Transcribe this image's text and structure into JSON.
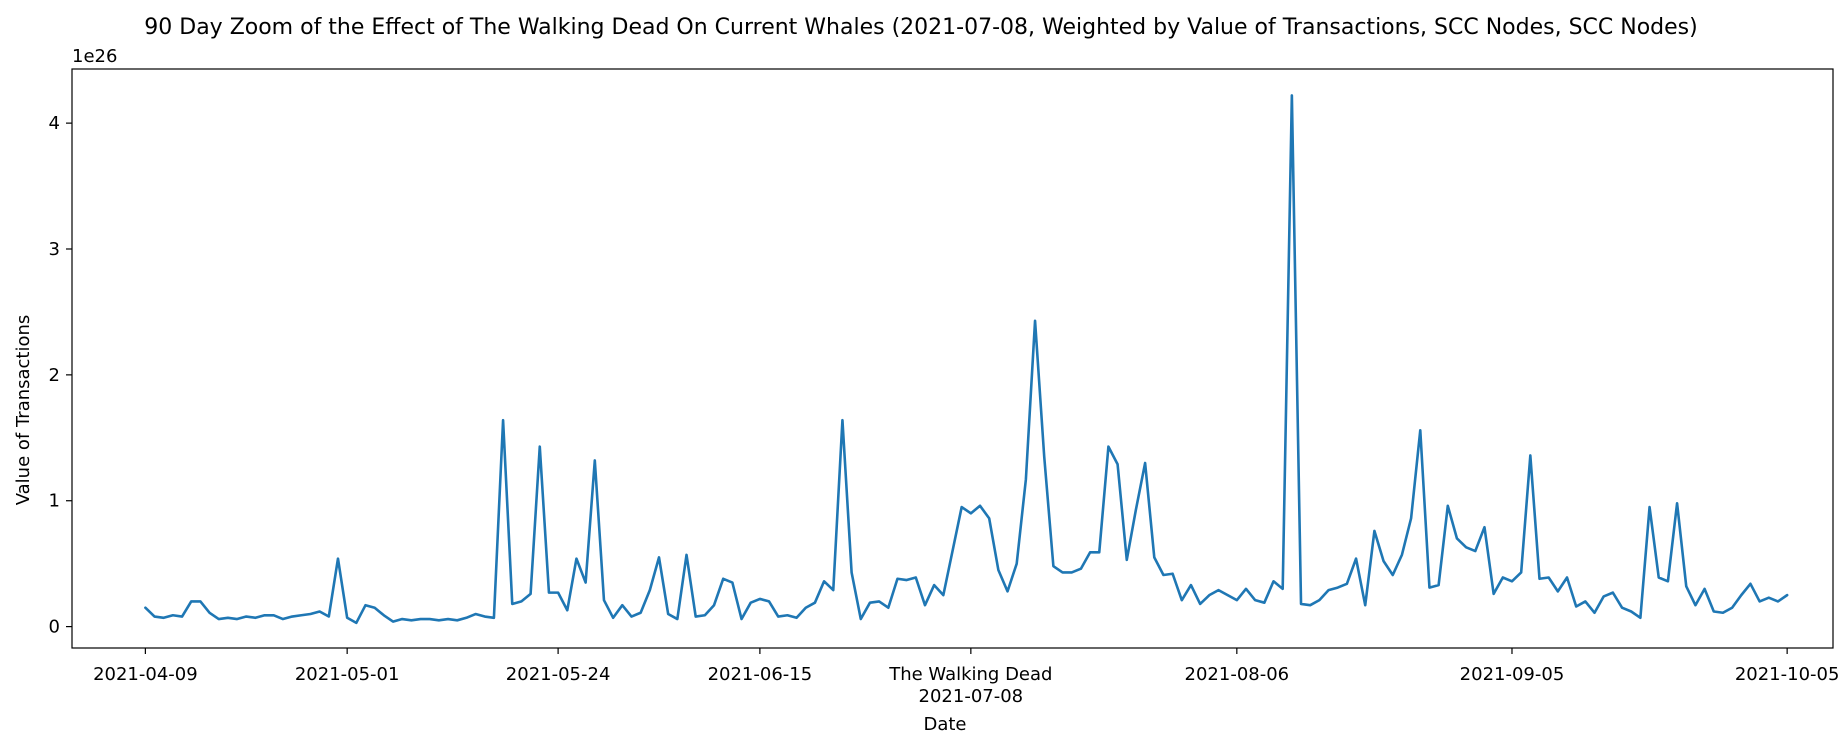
{
  "chart_data": {
    "type": "line",
    "title": "90 Day Zoom of the Effect of The Walking Dead On Current Whales (2021-07-08, Weighted by Value of Transactions, SCC Nodes, SCC Nodes)",
    "xlabel": "Date",
    "ylabel": "Value of Transactions",
    "y_scale_label": "1e26",
    "y_ticks": [
      0,
      1,
      2,
      3,
      4
    ],
    "ylim": [
      -0.17,
      4.43
    ],
    "xlim": [
      "2021-04-01",
      "2021-10-10"
    ],
    "x_ticks": [
      {
        "date": "2021-04-09",
        "label": "2021-04-09"
      },
      {
        "date": "2021-05-01",
        "label": "2021-05-01"
      },
      {
        "date": "2021-05-24",
        "label": "2021-05-24"
      },
      {
        "date": "2021-06-15",
        "label": "2021-06-15"
      },
      {
        "date": "2021-07-08",
        "label": "2021-07-08"
      },
      {
        "date": "2021-08-06",
        "label": "2021-08-06"
      },
      {
        "date": "2021-09-05",
        "label": "2021-09-05"
      },
      {
        "date": "2021-10-05",
        "label": "2021-10-05"
      }
    ],
    "event": {
      "date": "2021-07-08",
      "label": "The Walking Dead"
    },
    "line_color": "#1f77b4",
    "grid": false,
    "series": [
      {
        "x": [
          "2021-04-09",
          "2021-04-10",
          "2021-04-11",
          "2021-04-12",
          "2021-04-13",
          "2021-04-14",
          "2021-04-15",
          "2021-04-16",
          "2021-04-17",
          "2021-04-18",
          "2021-04-19",
          "2021-04-20",
          "2021-04-21",
          "2021-04-22",
          "2021-04-23",
          "2021-04-24",
          "2021-04-25",
          "2021-04-26",
          "2021-04-27",
          "2021-04-28",
          "2021-04-29",
          "2021-04-30",
          "2021-05-01",
          "2021-05-02",
          "2021-05-03",
          "2021-05-04",
          "2021-05-05",
          "2021-05-06",
          "2021-05-07",
          "2021-05-08",
          "2021-05-09",
          "2021-05-10",
          "2021-05-11",
          "2021-05-12",
          "2021-05-13",
          "2021-05-14",
          "2021-05-15",
          "2021-05-16",
          "2021-05-17",
          "2021-05-18",
          "2021-05-19",
          "2021-05-20",
          "2021-05-21",
          "2021-05-22",
          "2021-05-23",
          "2021-05-24",
          "2021-05-25",
          "2021-05-26",
          "2021-05-27",
          "2021-05-28",
          "2021-05-29",
          "2021-05-30",
          "2021-05-31",
          "2021-06-01",
          "2021-06-02",
          "2021-06-03",
          "2021-06-04",
          "2021-06-05",
          "2021-06-06",
          "2021-06-07",
          "2021-06-08",
          "2021-06-09",
          "2021-06-10",
          "2021-06-11",
          "2021-06-12",
          "2021-06-13",
          "2021-06-14",
          "2021-06-15",
          "2021-06-16",
          "2021-06-17",
          "2021-06-18",
          "2021-06-19",
          "2021-06-20",
          "2021-06-21",
          "2021-06-22",
          "2021-06-23",
          "2021-06-24",
          "2021-06-25",
          "2021-06-26",
          "2021-06-27",
          "2021-06-28",
          "2021-06-29",
          "2021-06-30",
          "2021-07-01",
          "2021-07-02",
          "2021-07-03",
          "2021-07-04",
          "2021-07-05",
          "2021-07-06",
          "2021-07-07",
          "2021-07-08",
          "2021-07-09",
          "2021-07-10",
          "2021-07-11",
          "2021-07-12",
          "2021-07-13",
          "2021-07-14",
          "2021-07-15",
          "2021-07-16",
          "2021-07-17",
          "2021-07-18",
          "2021-07-19",
          "2021-07-20",
          "2021-07-21",
          "2021-07-22",
          "2021-07-23",
          "2021-07-24",
          "2021-07-25",
          "2021-07-26",
          "2021-07-27",
          "2021-07-28",
          "2021-07-29",
          "2021-07-30",
          "2021-07-31",
          "2021-08-01",
          "2021-08-02",
          "2021-08-03",
          "2021-08-04",
          "2021-08-05",
          "2021-08-06",
          "2021-08-07",
          "2021-08-08",
          "2021-08-09",
          "2021-08-10",
          "2021-08-11",
          "2021-08-12",
          "2021-08-13",
          "2021-08-14",
          "2021-08-15",
          "2021-08-16",
          "2021-08-17",
          "2021-08-18",
          "2021-08-19",
          "2021-08-20",
          "2021-08-21",
          "2021-08-22",
          "2021-08-23",
          "2021-08-24",
          "2021-08-25",
          "2021-08-26",
          "2021-08-27",
          "2021-08-28",
          "2021-08-29",
          "2021-08-30",
          "2021-08-31",
          "2021-09-01",
          "2021-09-02",
          "2021-09-03",
          "2021-09-04",
          "2021-09-05",
          "2021-09-06",
          "2021-09-07",
          "2021-09-08",
          "2021-09-09",
          "2021-09-10",
          "2021-09-11",
          "2021-09-12",
          "2021-09-13",
          "2021-09-14",
          "2021-09-15",
          "2021-09-16",
          "2021-09-17",
          "2021-09-18",
          "2021-09-19",
          "2021-09-20",
          "2021-09-21",
          "2021-09-22",
          "2021-09-23",
          "2021-09-24",
          "2021-09-25",
          "2021-09-26",
          "2021-09-27",
          "2021-09-28",
          "2021-09-29",
          "2021-09-30",
          "2021-10-01",
          "2021-10-02",
          "2021-10-03",
          "2021-10-04",
          "2021-10-05"
        ],
        "y": [
          0.15,
          0.08,
          0.07,
          0.09,
          0.08,
          0.2,
          0.2,
          0.11,
          0.06,
          0.07,
          0.06,
          0.08,
          0.07,
          0.09,
          0.09,
          0.06,
          0.08,
          0.09,
          0.1,
          0.12,
          0.08,
          0.54,
          0.07,
          0.03,
          0.17,
          0.15,
          0.09,
          0.04,
          0.06,
          0.05,
          0.06,
          0.06,
          0.05,
          0.06,
          0.05,
          0.07,
          0.1,
          0.08,
          0.07,
          1.64,
          0.18,
          0.2,
          0.26,
          1.43,
          0.27,
          0.27,
          0.13,
          0.54,
          0.35,
          1.32,
          0.21,
          0.07,
          0.17,
          0.08,
          0.11,
          0.29,
          0.55,
          0.1,
          0.06,
          0.57,
          0.08,
          0.09,
          0.17,
          0.38,
          0.35,
          0.06,
          0.19,
          0.22,
          0.2,
          0.08,
          0.09,
          0.07,
          0.15,
          0.19,
          0.36,
          0.29,
          1.64,
          0.43,
          0.06,
          0.19,
          0.2,
          0.15,
          0.38,
          0.37,
          0.39,
          0.17,
          0.33,
          0.25,
          0.6,
          0.95,
          0.9,
          0.96,
          0.86,
          0.45,
          0.28,
          0.5,
          1.17,
          2.43,
          1.35,
          0.48,
          0.43,
          0.43,
          0.46,
          0.59,
          0.59,
          1.43,
          1.29,
          0.53,
          0.93,
          1.3,
          0.55,
          0.41,
          0.42,
          0.21,
          0.33,
          0.18,
          0.25,
          0.29,
          0.25,
          0.21,
          0.3,
          0.21,
          0.19,
          0.36,
          0.3,
          4.22,
          0.18,
          0.17,
          0.21,
          0.29,
          0.31,
          0.34,
          0.54,
          0.17,
          0.76,
          0.52,
          0.41,
          0.57,
          0.86,
          1.56,
          0.31,
          0.33,
          0.96,
          0.7,
          0.63,
          0.6,
          0.79,
          0.26,
          0.39,
          0.36,
          0.43,
          1.36,
          0.38,
          0.39,
          0.28,
          0.39,
          0.16,
          0.2,
          0.11,
          0.24,
          0.27,
          0.15,
          0.12,
          0.07,
          0.95,
          0.39,
          0.36,
          0.98,
          0.32,
          0.17,
          0.3,
          0.12,
          0.11,
          0.15,
          0.25,
          0.34,
          0.2,
          0.23,
          0.2,
          0.25
        ]
      }
    ]
  }
}
